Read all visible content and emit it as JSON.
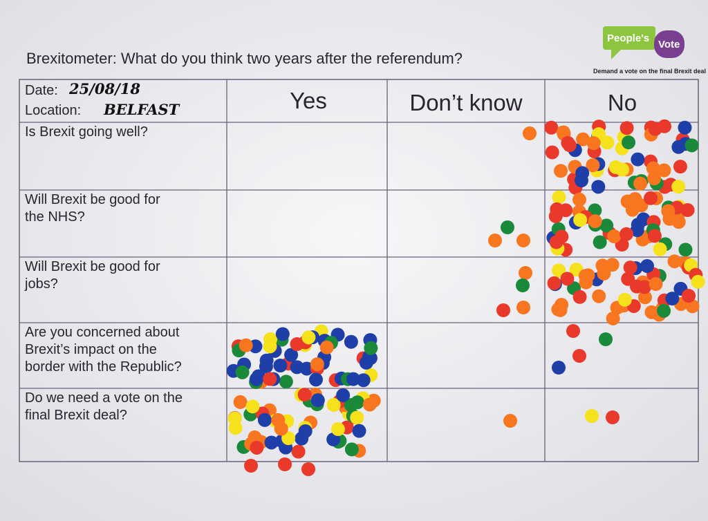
{
  "header": {
    "title": "Brexitometer: What do you think two years after the referendum?",
    "logo": {
      "line1": "People's",
      "line2": "Vote",
      "tagline": "Demand a vote on the final Brexit deal"
    }
  },
  "table": {
    "date_label": "Date:",
    "date": "25/08/18",
    "location_label": "Location:",
    "location": "BELFAST",
    "columns": [
      "Yes",
      "Don’t know",
      "No"
    ],
    "questions": [
      [
        "Is Brexit going well?"
      ],
      [
        "Will Brexit be good for",
        "the NHS?"
      ],
      [
        "Will Brexit be good for",
        "jobs?"
      ],
      [
        "Are you concerned about",
        "Brexit’s impact on the",
        "border with the Republic?"
      ],
      [
        "Do we need a vote on the",
        "final Brexit deal?"
      ]
    ]
  }
}
